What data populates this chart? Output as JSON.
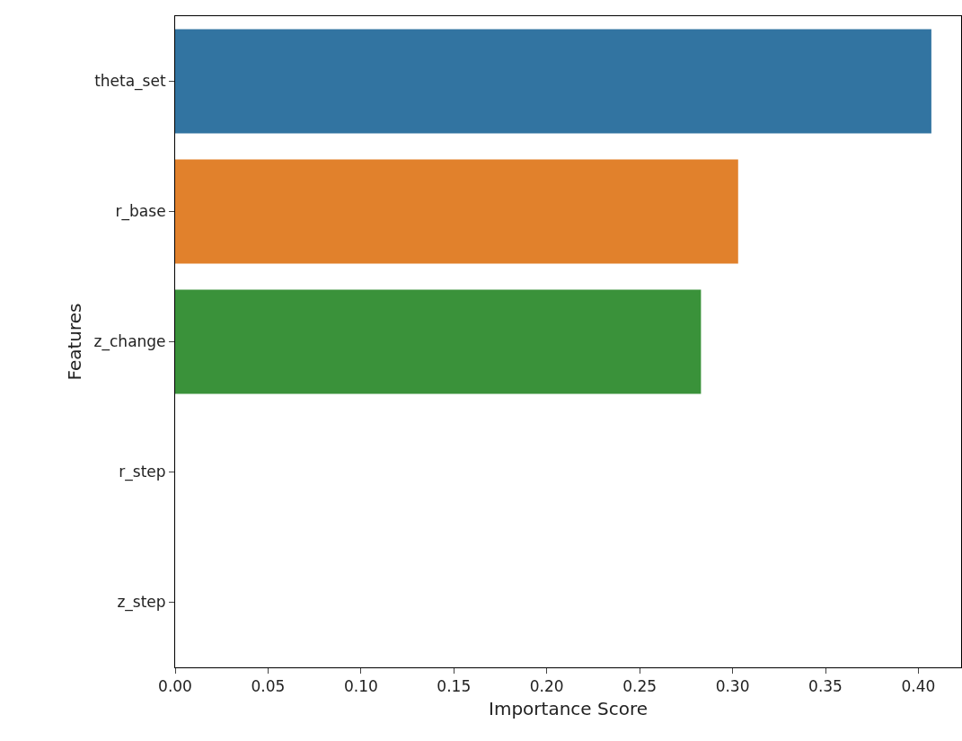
{
  "chart_data": {
    "type": "bar",
    "orientation": "horizontal",
    "xlabel": "Importance Score",
    "ylabel": "Features",
    "categories": [
      "theta_set",
      "r_base",
      "z_change",
      "r_step",
      "z_step"
    ],
    "values": [
      0.407,
      0.303,
      0.283,
      0,
      0
    ],
    "colors": [
      "#3274a1",
      "#e1812c",
      "#3a923a",
      "#c03d3e",
      "#9372b2"
    ],
    "xlim": [
      0,
      0.423
    ],
    "xticks": [
      {
        "value": 0,
        "label": "0.00"
      },
      {
        "value": 0.05,
        "label": "0.05"
      },
      {
        "value": 0.1,
        "label": "0.10"
      },
      {
        "value": 0.15,
        "label": "0.15"
      },
      {
        "value": 0.2,
        "label": "0.20"
      },
      {
        "value": 0.25,
        "label": "0.25"
      },
      {
        "value": 0.3,
        "label": "0.30"
      },
      {
        "value": 0.35,
        "label": "0.35"
      },
      {
        "value": 0.4,
        "label": "0.40"
      }
    ]
  }
}
